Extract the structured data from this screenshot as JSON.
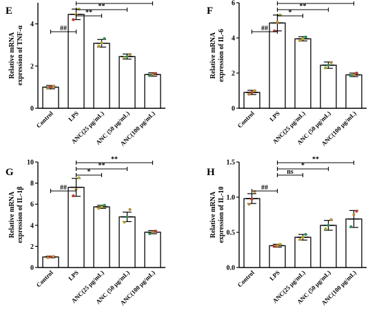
{
  "colors": {
    "bar_fill": "#ffffff",
    "bar_stroke": "#000000",
    "dot_colors": [
      "#b08a3e",
      "#c0392b",
      "#c9962e",
      "#a8a830",
      "#2e8b57"
    ]
  },
  "chart_data": [
    {
      "panel": "E",
      "type": "bar",
      "ylabel": "Relative mRNA expression of TNF-α",
      "ylim": [
        0,
        5
      ],
      "yticks": [
        "0",
        "2",
        "4"
      ],
      "yticks_values": [
        0,
        2,
        4
      ],
      "categories": [
        "Control",
        "LPS",
        "ANC(25 μg/mL)",
        "ANC (50 μg/mL)",
        "ANC(100 μg/mL)"
      ],
      "values": [
        1.0,
        4.45,
        3.08,
        2.45,
        1.6
      ],
      "errors": [
        0.08,
        0.25,
        0.18,
        0.12,
        0.08
      ],
      "points": [
        [
          0.95,
          1.02,
          1.05
        ],
        [
          4.2,
          4.45,
          4.7
        ],
        [
          2.95,
          3.1,
          3.3
        ],
        [
          2.4,
          2.45,
          2.55
        ],
        [
          1.55,
          1.6,
          1.65
        ]
      ],
      "comparisons": [
        {
          "from": 0,
          "to": 1,
          "label": "##"
        },
        {
          "from": 1,
          "to": 2,
          "label": "**"
        },
        {
          "from": 1,
          "to": 3,
          "label": "**"
        },
        {
          "from": 1,
          "to": 4,
          "label": "**"
        }
      ]
    },
    {
      "panel": "F",
      "type": "bar",
      "ylabel": "Relative mRNA expression of IL-6",
      "ylim": [
        0,
        6
      ],
      "yticks": [
        "0",
        "2",
        "4",
        "6"
      ],
      "yticks_values": [
        0,
        2,
        4,
        6
      ],
      "categories": [
        "Control",
        "LPS",
        "ANC(25 μg/mL)",
        "ANC (50 μg/mL)",
        "ANC(100 μg/mL)"
      ],
      "values": [
        0.9,
        4.85,
        3.95,
        2.45,
        1.9
      ],
      "errors": [
        0.12,
        0.45,
        0.12,
        0.18,
        0.1
      ],
      "points": [
        [
          0.8,
          0.9,
          1.0
        ],
        [
          4.4,
          4.9,
          5.3
        ],
        [
          3.85,
          3.95,
          4.05
        ],
        [
          2.3,
          2.45,
          2.6
        ],
        [
          1.85,
          1.9,
          2.0
        ]
      ],
      "comparisons": [
        {
          "from": 0,
          "to": 1,
          "label": "##"
        },
        {
          "from": 1,
          "to": 2,
          "label": "*"
        },
        {
          "from": 1,
          "to": 3,
          "label": "**"
        },
        {
          "from": 1,
          "to": 4,
          "label": "**"
        }
      ]
    },
    {
      "panel": "G",
      "type": "bar",
      "ylabel": "Relative mRNA expression of IL-1β",
      "ylim": [
        0,
        10
      ],
      "yticks": [
        "0",
        "2",
        "4",
        "6",
        "8",
        "10"
      ],
      "yticks_values": [
        0,
        2,
        4,
        6,
        8,
        10
      ],
      "categories": [
        "Control",
        "LPS",
        "ANC(25 μg/mL)",
        "ANC (50 μg/mL)",
        "ANC(100 μg/mL)"
      ],
      "values": [
        1.0,
        7.6,
        5.75,
        4.8,
        3.35
      ],
      "errors": [
        0.08,
        0.85,
        0.15,
        0.45,
        0.15
      ],
      "points": [
        [
          0.95,
          1.0,
          1.05
        ],
        [
          6.8,
          7.4,
          8.5
        ],
        [
          5.6,
          5.75,
          5.9
        ],
        [
          4.3,
          4.8,
          5.5
        ],
        [
          3.2,
          3.35,
          3.45
        ]
      ],
      "comparisons": [
        {
          "from": 0,
          "to": 1,
          "label": "##"
        },
        {
          "from": 1,
          "to": 2,
          "label": "*"
        },
        {
          "from": 1,
          "to": 3,
          "label": "**"
        },
        {
          "from": 1,
          "to": 4,
          "label": "**"
        }
      ]
    },
    {
      "panel": "H",
      "type": "bar",
      "ylabel": "Relative mRNA expression of IL-10",
      "ylim": [
        0,
        1.5
      ],
      "yticks": [
        "0.0",
        "0.5",
        "1.0",
        "1.5"
      ],
      "yticks_values": [
        0,
        0.5,
        1.0,
        1.5
      ],
      "categories": [
        "Control",
        "LPS",
        "ANC(25 μg/mL)",
        "ANC (50 μg/mL)",
        "ANC(100 μg/mL)"
      ],
      "values": [
        0.98,
        0.31,
        0.43,
        0.6,
        0.69
      ],
      "errors": [
        0.07,
        0.02,
        0.04,
        0.07,
        0.12
      ],
      "points": [
        [
          0.9,
          0.97,
          1.08
        ],
        [
          0.3,
          0.31,
          0.33
        ],
        [
          0.4,
          0.43,
          0.47
        ],
        [
          0.55,
          0.6,
          0.68
        ],
        [
          0.58,
          0.75,
          0.8
        ]
      ],
      "comparisons": [
        {
          "from": 0,
          "to": 1,
          "label": "##"
        },
        {
          "from": 1,
          "to": 2,
          "label": "ns"
        },
        {
          "from": 1,
          "to": 3,
          "label": "*"
        },
        {
          "from": 1,
          "to": 4,
          "label": "**"
        }
      ]
    }
  ]
}
